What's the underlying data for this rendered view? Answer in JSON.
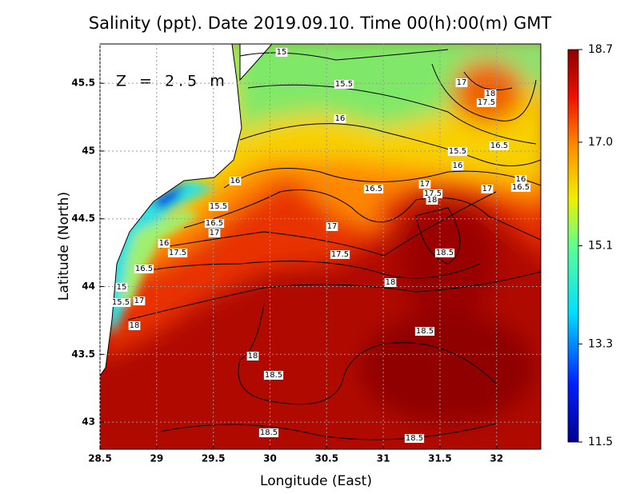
{
  "chart_data": {
    "type": "contour_map",
    "title": "Salinity (ppt). Date 2019.09.10. Time 00(h):00(m) GMT",
    "x_label": "Longitude (East)",
    "y_label": "Latitude (North)",
    "annotation": "Z = 2.5 m",
    "xlim": [
      28.5,
      32.39
    ],
    "ylim": [
      42.8,
      45.79
    ],
    "xticks": [
      28.5,
      29,
      29.5,
      30,
      30.5,
      31,
      31.5,
      32
    ],
    "yticks": [
      43,
      43.5,
      44,
      44.5,
      45,
      45.5
    ],
    "grid": true,
    "colorbar": {
      "lim": [
        11.5,
        18.7
      ],
      "ticks": [
        18.7,
        {
          "value": 17,
          "label": "17.0"
        },
        15.1,
        13.3,
        11.5
      ]
    },
    "contour_labels": [
      15,
      15.5,
      16,
      17,
      18,
      17.5,
      16.5,
      15.5,
      16,
      16,
      16.5,
      17,
      17,
      17.5,
      18,
      16.5,
      16,
      15.5,
      16.5,
      17,
      17,
      16,
      17.5,
      16.5,
      17.5,
      18.5,
      18,
      15,
      15.5,
      17,
      18,
      18.5,
      18,
      18.5,
      18.5,
      18.5
    ]
  }
}
